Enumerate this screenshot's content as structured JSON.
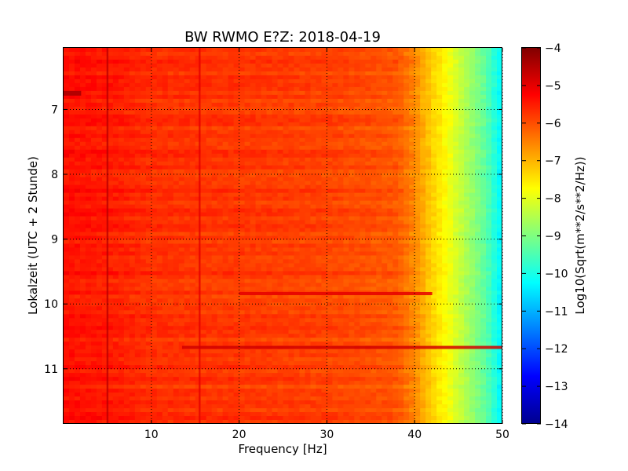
{
  "chart_data": {
    "type": "heatmap",
    "title": "BW RWMO E?Z: 2018-04-19",
    "xlabel": "Frequency [Hz]",
    "ylabel": "Lokalzeit (UTC + 2 Stunde)",
    "xlim": [
      0,
      50
    ],
    "ylim": [
      6.05,
      11.85
    ],
    "y_inverted": true,
    "x_ticks": [
      10,
      20,
      30,
      40,
      50
    ],
    "y_ticks": [
      7,
      8,
      9,
      10,
      11
    ],
    "grid": true,
    "colormap": "jet",
    "colorbar": {
      "label": "Log10(Sqrt(m**2/s**2/Hz))",
      "min": -14,
      "max": -4,
      "ticks": [
        -4,
        -5,
        -6,
        -7,
        -8,
        -9,
        -10,
        -11,
        -12,
        -13,
        -14
      ]
    },
    "frequency_profile": {
      "frequency_hz": [
        0,
        5,
        10,
        20,
        30,
        38,
        40,
        42,
        44,
        46,
        48,
        50
      ],
      "log10_amplitude": [
        -5.4,
        -5.5,
        -5.7,
        -5.8,
        -5.9,
        -6.1,
        -6.6,
        -7.3,
        -7.9,
        -8.6,
        -9.3,
        -10.4
      ]
    },
    "features": [
      {
        "kind": "vertical_line",
        "frequency_hz": 5.0,
        "log10_amplitude": -4.6
      },
      {
        "kind": "vertical_line",
        "frequency_hz": 15.5,
        "log10_amplitude": -5.0
      },
      {
        "kind": "horizontal_band",
        "time_h": 10.67,
        "f_from": 13.5,
        "f_to": 50,
        "log10_amplitude": -4.8
      },
      {
        "kind": "horizontal_band",
        "time_h": 9.84,
        "f_from": 20,
        "f_to": 42,
        "log10_amplitude": -5.0
      },
      {
        "kind": "patch",
        "time_h": 6.75,
        "f_from": 0,
        "f_to": 2.0,
        "log10_amplitude": -4.5
      }
    ]
  }
}
